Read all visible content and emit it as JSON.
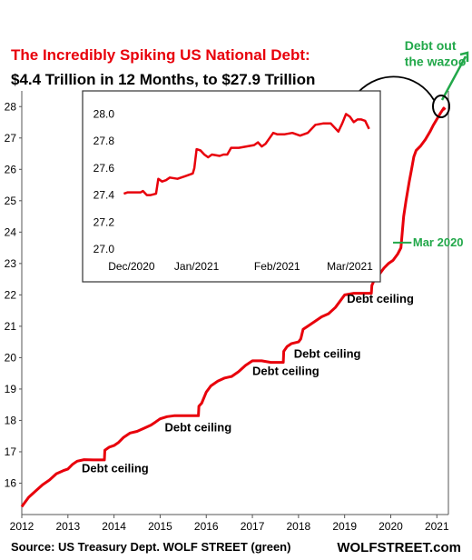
{
  "colors": {
    "line": "#e8000b",
    "green": "#22a84a",
    "axis": "#555555",
    "grid": "#cccccc"
  },
  "title_line1": "The Incredibly Spiking US National Debt:",
  "title_line2": "$4.4 Trillion  in 12 Months,  to $27.9 Trillion",
  "footer_source": "Source: US Treasury Dept. WOLF STREET (green)",
  "footer_brand": "WOLFSTREET.com",
  "chart_data": [
    {
      "type": "line",
      "title": "",
      "xlabel": "",
      "ylabel": "",
      "xlim": [
        2012.0,
        2021.25
      ],
      "ylim": [
        15.0,
        28.5
      ],
      "x_ticks": [
        2012,
        2013,
        2014,
        2015,
        2016,
        2017,
        2018,
        2019,
        2020,
        2021
      ],
      "x_tick_labels": [
        "2012",
        "2013",
        "2014",
        "2015",
        "2016",
        "2017",
        "2018",
        "2019",
        "2020",
        "2021"
      ],
      "y_ticks": [
        16,
        17,
        18,
        19,
        20,
        21,
        22,
        23,
        24,
        25,
        26,
        27,
        28
      ],
      "y_tick_labels": [
        "16",
        "17",
        "18",
        "19",
        "20",
        "21",
        "22",
        "23",
        "24",
        "25",
        "26",
        "27",
        "28"
      ],
      "series": [
        {
          "points": [
            [
              2012.0,
              15.25
            ],
            [
              2012.05,
              15.35
            ],
            [
              2012.15,
              15.55
            ],
            [
              2012.3,
              15.75
            ],
            [
              2012.45,
              15.95
            ],
            [
              2012.6,
              16.1
            ],
            [
              2012.75,
              16.3
            ],
            [
              2012.9,
              16.4
            ],
            [
              2013.0,
              16.45
            ],
            [
              2013.1,
              16.6
            ],
            [
              2013.2,
              16.7
            ],
            [
              2013.35,
              16.75
            ],
            [
              2013.55,
              16.74
            ],
            [
              2013.75,
              16.74
            ],
            [
              2013.79,
              16.74
            ],
            [
              2013.8,
              17.05
            ],
            [
              2013.9,
              17.15
            ],
            [
              2014.0,
              17.2
            ],
            [
              2014.1,
              17.3
            ],
            [
              2014.2,
              17.45
            ],
            [
              2014.35,
              17.6
            ],
            [
              2014.5,
              17.65
            ],
            [
              2014.65,
              17.75
            ],
            [
              2014.8,
              17.85
            ],
            [
              2014.9,
              17.95
            ],
            [
              2015.0,
              18.05
            ],
            [
              2015.15,
              18.12
            ],
            [
              2015.3,
              18.15
            ],
            [
              2015.5,
              18.15
            ],
            [
              2015.7,
              18.15
            ],
            [
              2015.83,
              18.15
            ],
            [
              2015.84,
              18.45
            ],
            [
              2015.9,
              18.55
            ],
            [
              2016.0,
              18.9
            ],
            [
              2016.1,
              19.1
            ],
            [
              2016.25,
              19.25
            ],
            [
              2016.4,
              19.35
            ],
            [
              2016.55,
              19.4
            ],
            [
              2016.7,
              19.55
            ],
            [
              2016.85,
              19.75
            ],
            [
              2017.0,
              19.9
            ],
            [
              2017.2,
              19.9
            ],
            [
              2017.4,
              19.85
            ],
            [
              2017.6,
              19.85
            ],
            [
              2017.67,
              19.85
            ],
            [
              2017.68,
              20.2
            ],
            [
              2017.75,
              20.35
            ],
            [
              2017.85,
              20.45
            ],
            [
              2018.0,
              20.5
            ],
            [
              2018.05,
              20.6
            ],
            [
              2018.1,
              20.9
            ],
            [
              2018.2,
              21.0
            ],
            [
              2018.35,
              21.15
            ],
            [
              2018.5,
              21.3
            ],
            [
              2018.65,
              21.4
            ],
            [
              2018.8,
              21.6
            ],
            [
              2018.9,
              21.8
            ],
            [
              2019.0,
              22.0
            ],
            [
              2019.2,
              22.05
            ],
            [
              2019.4,
              22.05
            ],
            [
              2019.55,
              22.05
            ],
            [
              2019.58,
              22.05
            ],
            [
              2019.59,
              22.3
            ],
            [
              2019.65,
              22.5
            ],
            [
              2019.75,
              22.65
            ],
            [
              2019.85,
              22.85
            ],
            [
              2019.95,
              23.0
            ],
            [
              2020.05,
              23.1
            ],
            [
              2020.15,
              23.3
            ],
            [
              2020.22,
              23.5
            ],
            [
              2020.28,
              24.5
            ],
            [
              2020.33,
              25.0
            ],
            [
              2020.4,
              25.6
            ],
            [
              2020.45,
              26.0
            ],
            [
              2020.5,
              26.4
            ],
            [
              2020.55,
              26.6
            ],
            [
              2020.65,
              26.75
            ],
            [
              2020.75,
              26.95
            ],
            [
              2020.85,
              27.2
            ],
            [
              2020.92,
              27.4
            ],
            [
              2021.0,
              27.6
            ],
            [
              2021.08,
              27.8
            ],
            [
              2021.15,
              27.95
            ],
            [
              2021.18,
              27.9
            ]
          ]
        }
      ],
      "annotations": [
        {
          "text": "Debt ceiling",
          "x": 2013.3,
          "y": 16.35
        },
        {
          "text": "Debt ceiling",
          "x": 2015.1,
          "y": 17.65
        },
        {
          "text": "Debt ceiling",
          "x": 2017.0,
          "y": 19.45
        },
        {
          "text": "Debt ceiling",
          "x": 2017.9,
          "y": 20.0
        },
        {
          "text": "Debt ceiling",
          "x": 2019.05,
          "y": 21.75
        },
        {
          "text": "Mar 2020",
          "x": 2020.48,
          "y": 23.55
        },
        {
          "text": "Debt out",
          "x": 2020.3,
          "y": 29.8
        },
        {
          "text": "the wazoo",
          "x": 2020.3,
          "y": 29.3
        }
      ]
    },
    {
      "type": "line",
      "title": "",
      "xlabel": "",
      "ylabel": "",
      "xlim": [
        -0.1,
        3.3
      ],
      "ylim": [
        27.0,
        28.05
      ],
      "x_ticks": [
        0.1,
        0.95,
        2.0,
        2.95
      ],
      "x_tick_labels": [
        "Dec/2020",
        "Jan/2021",
        "Feb/2021",
        "Mar/2021"
      ],
      "y_ticks": [
        27.0,
        27.2,
        27.4,
        27.6,
        27.8,
        28.0
      ],
      "y_tick_labels": [
        "27.0",
        "27.2",
        "27.4",
        "27.6",
        "27.8",
        "28.0"
      ],
      "series": [
        {
          "points": [
            [
              0.0,
              27.41
            ],
            [
              0.05,
              27.42
            ],
            [
              0.15,
              27.42
            ],
            [
              0.22,
              27.42
            ],
            [
              0.25,
              27.43
            ],
            [
              0.3,
              27.4
            ],
            [
              0.35,
              27.4
            ],
            [
              0.42,
              27.41
            ],
            [
              0.45,
              27.52
            ],
            [
              0.5,
              27.5
            ],
            [
              0.55,
              27.51
            ],
            [
              0.6,
              27.53
            ],
            [
              0.7,
              27.52
            ],
            [
              0.8,
              27.54
            ],
            [
              0.9,
              27.56
            ],
            [
              0.92,
              27.6
            ],
            [
              0.95,
              27.74
            ],
            [
              1.0,
              27.73
            ],
            [
              1.05,
              27.7
            ],
            [
              1.1,
              27.68
            ],
            [
              1.15,
              27.7
            ],
            [
              1.25,
              27.69
            ],
            [
              1.3,
              27.7
            ],
            [
              1.35,
              27.7
            ],
            [
              1.4,
              27.75
            ],
            [
              1.5,
              27.75
            ],
            [
              1.6,
              27.76
            ],
            [
              1.7,
              27.77
            ],
            [
              1.75,
              27.79
            ],
            [
              1.8,
              27.76
            ],
            [
              1.85,
              27.78
            ],
            [
              1.9,
              27.82
            ],
            [
              1.95,
              27.86
            ],
            [
              2.0,
              27.85
            ],
            [
              2.1,
              27.85
            ],
            [
              2.2,
              27.86
            ],
            [
              2.3,
              27.84
            ],
            [
              2.4,
              27.86
            ],
            [
              2.5,
              27.92
            ],
            [
              2.6,
              27.93
            ],
            [
              2.7,
              27.93
            ],
            [
              2.75,
              27.9
            ],
            [
              2.8,
              27.87
            ],
            [
              2.85,
              27.93
            ],
            [
              2.9,
              28.0
            ],
            [
              2.95,
              27.98
            ],
            [
              3.0,
              27.94
            ],
            [
              3.05,
              27.96
            ],
            [
              3.1,
              27.96
            ],
            [
              3.15,
              27.95
            ],
            [
              3.2,
              27.89
            ]
          ]
        }
      ]
    }
  ]
}
